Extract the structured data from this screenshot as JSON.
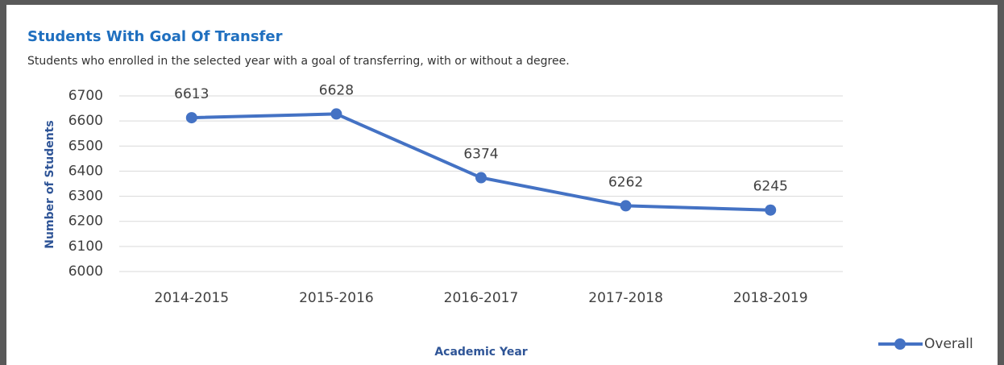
{
  "chart_data": {
    "type": "line",
    "title": "Students With Goal Of Transfer",
    "subtitle": "Students who enrolled in the selected year with a goal of transferring, with or without a degree.",
    "x_label": "Academic Year",
    "y_label": "Number of Students",
    "categories": [
      "2014-2015",
      "2015-2016",
      "2016-2017",
      "2017-2018",
      "2018-2019"
    ],
    "series": [
      {
        "name": "Overall",
        "color": "#4472c4",
        "values": [
          6613,
          6628,
          6374,
          6262,
          6245
        ]
      }
    ],
    "ylim": [
      6000,
      6700
    ],
    "yticks": [
      6000,
      6100,
      6200,
      6300,
      6400,
      6500,
      6600,
      6700
    ],
    "grid": true,
    "legend": "bottom-right"
  }
}
